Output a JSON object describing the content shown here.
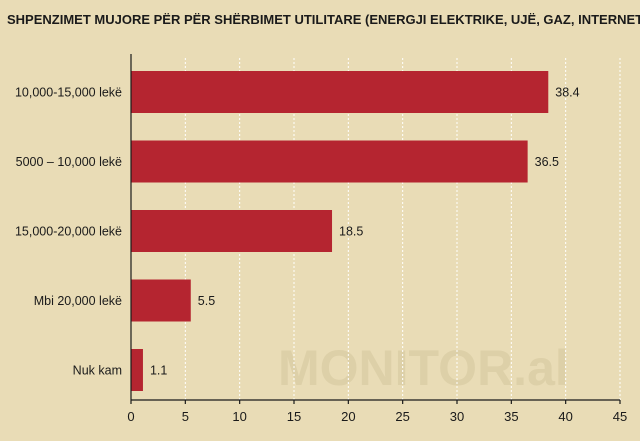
{
  "chart_data": {
    "type": "bar",
    "orientation": "horizontal",
    "title": "SHPENZIMET MUJORE PËR PËR SHËRBIMET UTILITARE (ENERGJI ELEKTRIKE, UJË, GAZ, INTERNET), %",
    "categories": [
      "10,000-15,000 lekë",
      "5000 – 10,000 lekë",
      "15,000-20,000 lekë",
      "Mbi 20,000 lekë",
      "Nuk kam"
    ],
    "values": [
      38.4,
      36.5,
      18.5,
      5.5,
      1.1
    ],
    "value_labels": [
      "38.4",
      "36.5",
      "18.5",
      "5.5",
      "1.1"
    ],
    "xlim": [
      0,
      45
    ],
    "xticks": [
      0,
      5,
      10,
      15,
      20,
      25,
      30,
      35,
      40,
      45
    ],
    "grid": "vertical dashed",
    "xlabel": "",
    "ylabel": "",
    "colors": {
      "background": "#e9dcb6",
      "bar": "#b52530",
      "axis": "#1a1a1a",
      "grid": "#ffffff"
    },
    "watermark": "MONITOR.al"
  }
}
